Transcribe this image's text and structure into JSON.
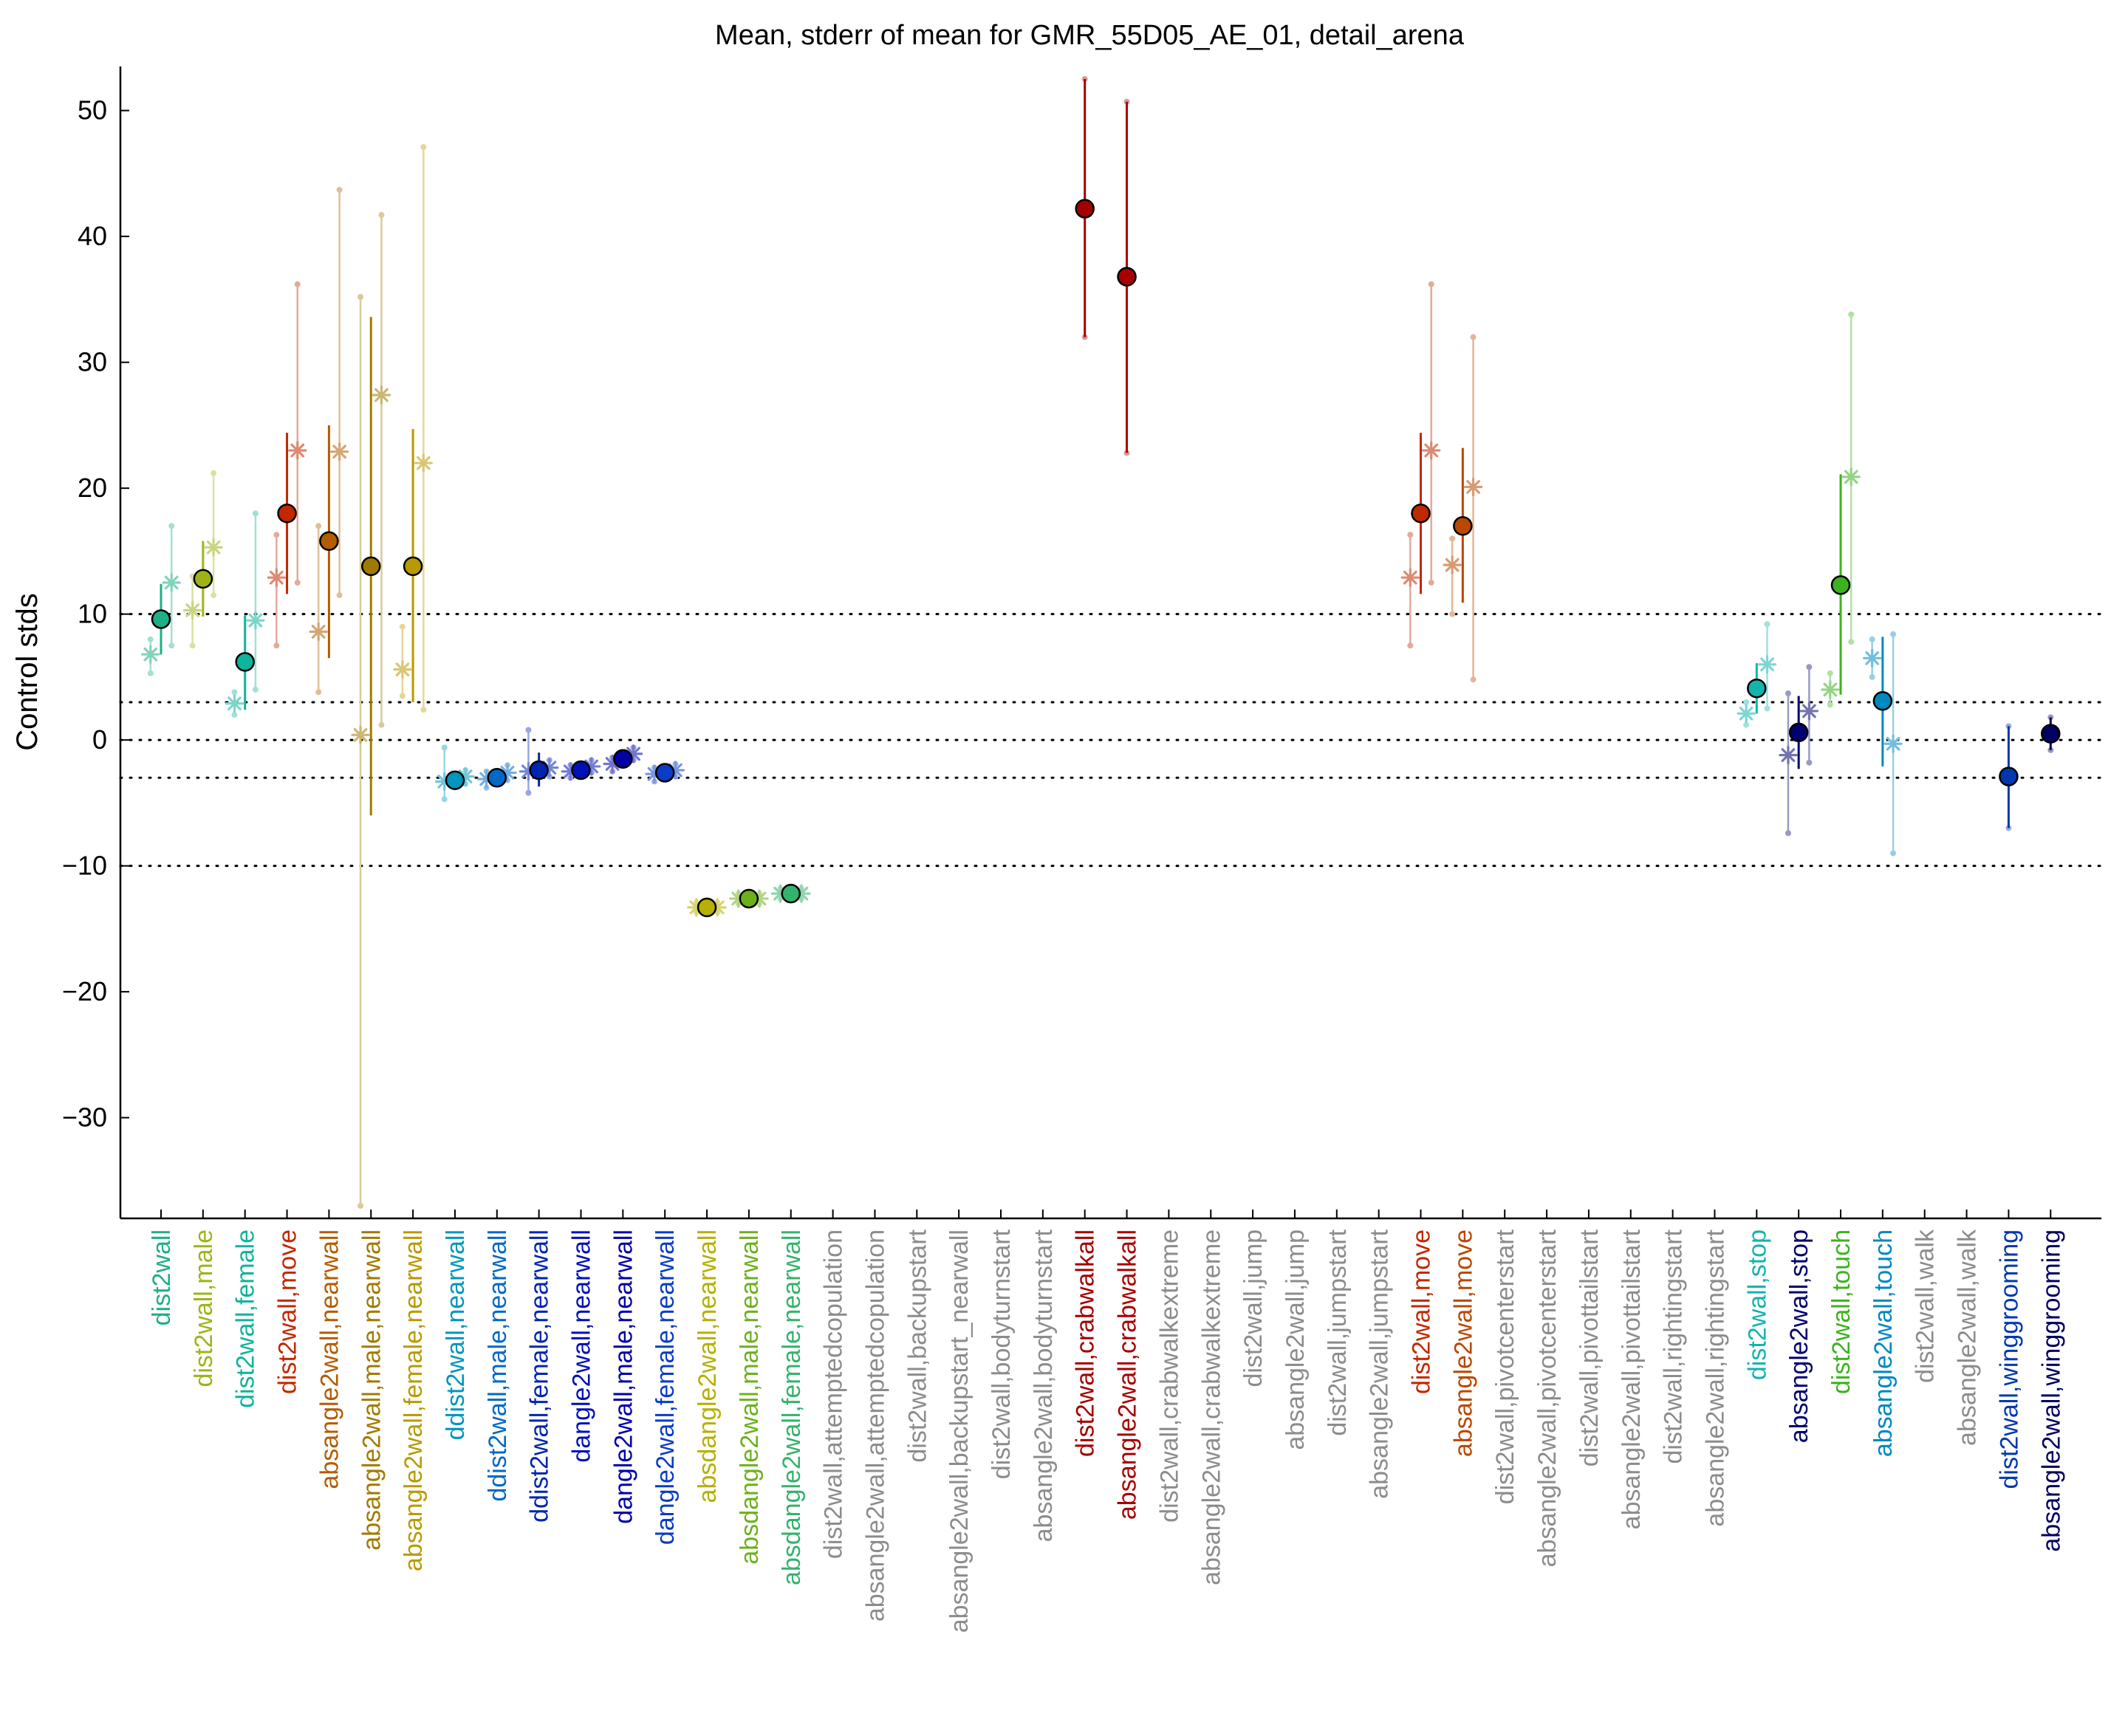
{
  "chart_data": {
    "type": "scatter",
    "title": "Mean, stderr of mean for GMR_55D05_AE_01, detail_arena",
    "xlabel": "",
    "ylabel": "Control stds",
    "ylim": [
      -38,
      53.5
    ],
    "yticks": [
      -30,
      -20,
      -10,
      0,
      10,
      20,
      30,
      40,
      50
    ],
    "reference_lines": [
      10,
      3,
      0,
      -3,
      -10
    ],
    "grid": false,
    "legend": "none",
    "categories": [
      {
        "label": "dist2wall",
        "color": "#1fae86",
        "mean": 9.6,
        "se_low": 6.8,
        "se_high": 12.4,
        "points": [
          {
            "dx": -0.25,
            "y": 6.8,
            "lo": 5.3,
            "hi": 8.0
          },
          {
            "dx": 0.25,
            "y": 12.5,
            "lo": 7.5,
            "hi": 17.0
          }
        ]
      },
      {
        "label": "dist2wall,male",
        "color": "#9fb319",
        "mean": 12.8,
        "se_low": 9.8,
        "se_high": 15.8,
        "points": [
          {
            "dx": -0.25,
            "y": 10.3,
            "lo": 7.5,
            "hi": 13.0
          },
          {
            "dx": 0.25,
            "y": 15.3,
            "lo": 11.5,
            "hi": 21.2
          }
        ]
      },
      {
        "label": "dist2wall,female",
        "color": "#10b39c",
        "mean": 6.2,
        "se_low": 2.4,
        "se_high": 9.9,
        "points": [
          {
            "dx": -0.25,
            "y": 2.9,
            "lo": 2.0,
            "hi": 3.8
          },
          {
            "dx": 0.25,
            "y": 9.5,
            "lo": 4.0,
            "hi": 18.0
          }
        ]
      },
      {
        "label": "dist2wall,move",
        "color": "#c12800",
        "mean": 18.0,
        "se_low": 11.6,
        "se_high": 24.4,
        "points": [
          {
            "dx": -0.25,
            "y": 12.9,
            "lo": 7.5,
            "hi": 16.3
          },
          {
            "dx": 0.25,
            "y": 23.0,
            "lo": 12.5,
            "hi": 36.2
          }
        ]
      },
      {
        "label": "absangle2wall,nearwall",
        "color": "#b35c00",
        "mean": 15.8,
        "se_low": 6.5,
        "se_high": 25.0,
        "points": [
          {
            "dx": -0.25,
            "y": 8.6,
            "lo": 3.8,
            "hi": 17.0
          },
          {
            "dx": 0.25,
            "y": 22.9,
            "lo": 11.5,
            "hi": 43.7
          }
        ]
      },
      {
        "label": "absangle2wall,male,nearwall",
        "color": "#a07a00",
        "mean": 13.8,
        "se_low": -6.0,
        "se_high": 33.6,
        "points": [
          {
            "dx": -0.25,
            "y": 0.4,
            "lo": -37.0,
            "hi": 35.2
          },
          {
            "dx": 0.25,
            "y": 27.4,
            "lo": 1.2,
            "hi": 41.7
          }
        ]
      },
      {
        "label": "absangle2wall,female,nearwall",
        "color": "#b89a00",
        "mean": 13.8,
        "se_low": 3.0,
        "se_high": 24.7,
        "points": [
          {
            "dx": -0.25,
            "y": 5.6,
            "lo": 3.5,
            "hi": 9.0
          },
          {
            "dx": 0.25,
            "y": 22.0,
            "lo": 2.4,
            "hi": 47.1
          }
        ]
      },
      {
        "label": "ddist2wall,nearwall",
        "color": "#0096bd",
        "mean": -3.2,
        "se_low": -3.9,
        "se_high": -2.5,
        "points": [
          {
            "dx": -0.25,
            "y": -3.3,
            "lo": -4.7,
            "hi": -0.6
          },
          {
            "dx": 0.25,
            "y": -2.9,
            "lo": -3.5,
            "hi": -2.4
          }
        ]
      },
      {
        "label": "ddist2wall,male,nearwall",
        "color": "#0069c5",
        "mean": -3.0,
        "se_low": -3.6,
        "se_high": -2.4,
        "points": [
          {
            "dx": -0.25,
            "y": -3.1,
            "lo": -3.8,
            "hi": -2.5
          },
          {
            "dx": 0.25,
            "y": -2.6,
            "lo": -3.2,
            "hi": -2.0
          }
        ]
      },
      {
        "label": "ddist2wall,female,nearwall",
        "color": "#0024b0",
        "mean": -2.4,
        "se_low": -3.7,
        "se_high": -1.0,
        "points": [
          {
            "dx": -0.25,
            "y": -2.5,
            "lo": -4.2,
            "hi": 0.8
          },
          {
            "dx": 0.25,
            "y": -2.2,
            "lo": -2.9,
            "hi": -1.6
          }
        ]
      },
      {
        "label": "dangle2wall,nearwall",
        "color": "#0010b8",
        "mean": -2.4,
        "se_low": -2.9,
        "se_high": -1.9,
        "points": [
          {
            "dx": -0.25,
            "y": -2.5,
            "lo": -3.0,
            "hi": -2.0
          },
          {
            "dx": 0.25,
            "y": -2.1,
            "lo": -2.6,
            "hi": -1.6
          }
        ]
      },
      {
        "label": "dangle2wall,male,nearwall",
        "color": "#0000a5",
        "mean": -1.5,
        "se_low": -2.1,
        "se_high": -0.9,
        "points": [
          {
            "dx": -0.25,
            "y": -1.9,
            "lo": -2.5,
            "hi": -1.4
          },
          {
            "dx": 0.25,
            "y": -1.1,
            "lo": -1.6,
            "hi": -0.6
          }
        ]
      },
      {
        "label": "dangle2wall,female,nearwall",
        "color": "#0a3cc6",
        "mean": -2.6,
        "se_low": -3.2,
        "se_high": -2.0,
        "points": [
          {
            "dx": -0.25,
            "y": -2.7,
            "lo": -3.3,
            "hi": -2.2
          },
          {
            "dx": 0.25,
            "y": -2.4,
            "lo": -2.9,
            "hi": -1.9
          }
        ]
      },
      {
        "label": "absdangle2wall,nearwall",
        "color": "#b6b000",
        "mean": -13.3,
        "se_low": -13.8,
        "se_high": -12.8,
        "points": [
          {
            "dx": -0.25,
            "y": -13.3,
            "lo": -13.7,
            "hi": -12.9
          },
          {
            "dx": 0.25,
            "y": -13.3,
            "lo": -13.7,
            "hi": -12.9
          }
        ]
      },
      {
        "label": "absdangle2wall,male,nearwall",
        "color": "#6db01c",
        "mean": -12.6,
        "se_low": -13.0,
        "se_high": -12.2,
        "points": [
          {
            "dx": -0.25,
            "y": -12.6,
            "lo": -13.0,
            "hi": -12.2
          },
          {
            "dx": 0.25,
            "y": -12.6,
            "lo": -13.0,
            "hi": -12.2
          }
        ]
      },
      {
        "label": "absdangle2wall,female,nearwall",
        "color": "#33b36b",
        "mean": -12.2,
        "se_low": -12.6,
        "se_high": -11.8,
        "points": [
          {
            "dx": -0.25,
            "y": -12.2,
            "lo": -12.6,
            "hi": -11.8
          },
          {
            "dx": 0.25,
            "y": -12.2,
            "lo": -12.6,
            "hi": -11.8
          }
        ]
      },
      {
        "label": "dist2wall,attemptedcopulation",
        "color": "#8c8c8c"
      },
      {
        "label": "absangle2wall,attemptedcopulation",
        "color": "#8c8c8c"
      },
      {
        "label": "dist2wall,backupstart",
        "color": "#8c8c8c"
      },
      {
        "label": "absangle2wall,backupstart_nearwall",
        "color": "#8c8c8c"
      },
      {
        "label": "dist2wall,bodyturnstart",
        "color": "#8c8c8c"
      },
      {
        "label": "absangle2wall,bodyturnstart",
        "color": "#8c8c8c"
      },
      {
        "label": "dist2wall,crabwalkall",
        "color": "#a30000",
        "mean": 42.2,
        "se_low": 32.0,
        "se_high": 52.5,
        "points": [
          {
            "dx": 0,
            "y": 42.2,
            "lo": 32.0,
            "hi": 52.5
          }
        ]
      },
      {
        "label": "absangle2wall,crabwalkall",
        "color": "#a80000",
        "mean": 36.8,
        "se_low": 22.8,
        "se_high": 50.7,
        "points": [
          {
            "dx": 0,
            "y": 36.8,
            "lo": 22.8,
            "hi": 50.7
          }
        ]
      },
      {
        "label": "dist2wall,crabwalkextreme",
        "color": "#8c8c8c"
      },
      {
        "label": "absangle2wall,crabwalkextreme",
        "color": "#8c8c8c"
      },
      {
        "label": "dist2wall,jump",
        "color": "#8c8c8c"
      },
      {
        "label": "absangle2wall,jump",
        "color": "#8c8c8c"
      },
      {
        "label": "dist2wall,jumpstart",
        "color": "#8c8c8c"
      },
      {
        "label": "absangle2wall,jumpstart",
        "color": "#8c8c8c"
      },
      {
        "label": "dist2wall,move",
        "color": "#c12800",
        "mean": 18.0,
        "se_low": 11.6,
        "se_high": 24.4,
        "points": [
          {
            "dx": -0.25,
            "y": 12.9,
            "lo": 7.5,
            "hi": 16.3
          },
          {
            "dx": 0.25,
            "y": 23.0,
            "lo": 12.5,
            "hi": 36.2
          }
        ]
      },
      {
        "label": "absangle2wall,move",
        "color": "#b94800",
        "mean": 17.0,
        "se_low": 10.9,
        "se_high": 23.2,
        "points": [
          {
            "dx": -0.25,
            "y": 13.9,
            "lo": 10.0,
            "hi": 16.0
          },
          {
            "dx": 0.25,
            "y": 20.1,
            "lo": 4.8,
            "hi": 32.0
          }
        ]
      },
      {
        "label": "dist2wall,pivotcenterstart",
        "color": "#8c8c8c"
      },
      {
        "label": "absangle2wall,pivotcenterstart",
        "color": "#8c8c8c"
      },
      {
        "label": "dist2wall,pivottailstart",
        "color": "#8c8c8c"
      },
      {
        "label": "absangle2wall,pivottailstart",
        "color": "#8c8c8c"
      },
      {
        "label": "dist2wall,rightingstart",
        "color": "#8c8c8c"
      },
      {
        "label": "absangle2wall,rightingstart",
        "color": "#8c8c8c"
      },
      {
        "label": "dist2wall,stop",
        "color": "#12b4ac",
        "mean": 4.1,
        "se_low": 2.1,
        "se_high": 6.1,
        "points": [
          {
            "dx": -0.25,
            "y": 2.1,
            "lo": 1.2,
            "hi": 3.0
          },
          {
            "dx": 0.25,
            "y": 6.0,
            "lo": 2.5,
            "hi": 9.2
          }
        ]
      },
      {
        "label": "absangle2wall,stop",
        "color": "#000070",
        "mean": 0.6,
        "se_low": -2.3,
        "se_high": 3.5,
        "points": [
          {
            "dx": -0.25,
            "y": -1.2,
            "lo": -7.4,
            "hi": 3.7
          },
          {
            "dx": 0.25,
            "y": 2.3,
            "lo": -1.8,
            "hi": 5.8
          }
        ]
      },
      {
        "label": "dist2wall,touch",
        "color": "#3cb31e",
        "mean": 12.3,
        "se_low": 3.6,
        "se_high": 21.1,
        "points": [
          {
            "dx": -0.25,
            "y": 4.0,
            "lo": 2.8,
            "hi": 5.3
          },
          {
            "dx": 0.25,
            "y": 20.9,
            "lo": 7.8,
            "hi": 33.8
          }
        ]
      },
      {
        "label": "absangle2wall,touch",
        "color": "#0088c0",
        "mean": 3.1,
        "se_low": -2.1,
        "se_high": 8.2,
        "points": [
          {
            "dx": -0.25,
            "y": 6.5,
            "lo": 5.0,
            "hi": 8.0
          },
          {
            "dx": 0.25,
            "y": -0.3,
            "lo": -9.0,
            "hi": 8.4
          }
        ]
      },
      {
        "label": "dist2wall,walk",
        "color": "#8c8c8c"
      },
      {
        "label": "absangle2wall,walk",
        "color": "#8c8c8c"
      },
      {
        "label": "dist2wall,winggrooming",
        "color": "#0038b0",
        "mean": -2.9,
        "se_low": -7.0,
        "se_high": 1.1,
        "points": [
          {
            "dx": 0,
            "y": -2.9,
            "lo": -7.0,
            "hi": 1.1
          }
        ]
      },
      {
        "label": "absangle2wall,winggrooming",
        "color": "#000060",
        "mean": 0.5,
        "se_low": -0.8,
        "se_high": 1.8,
        "points": [
          {
            "dx": 0,
            "y": 0.5,
            "lo": -0.8,
            "hi": 1.8
          }
        ]
      }
    ]
  }
}
